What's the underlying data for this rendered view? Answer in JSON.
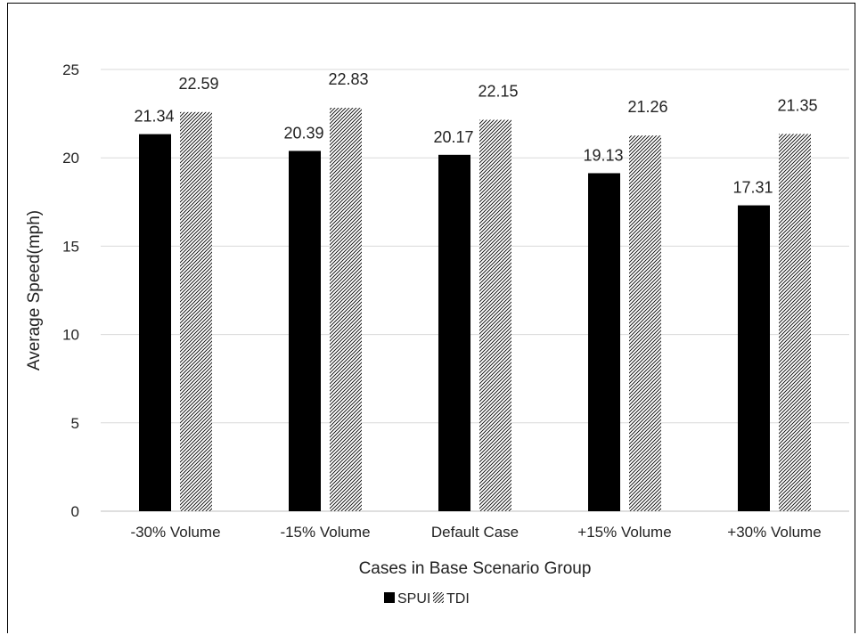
{
  "chart_data": {
    "type": "bar",
    "title": "",
    "xlabel": "Cases in Base Scenario Group",
    "ylabel": "Average Speed(mph)",
    "ylim": [
      0,
      25
    ],
    "yticks": [
      0,
      5,
      10,
      15,
      20,
      25
    ],
    "grid": true,
    "legend_position": "bottom",
    "categories": [
      "-30% Volume",
      "-15% Volume",
      "Default Case",
      "+15% Volume",
      "+30% Volume"
    ],
    "series": [
      {
        "name": "SPUI",
        "values": [
          21.34,
          20.39,
          20.17,
          19.13,
          17.31
        ],
        "data_labels": [
          "21.34",
          "20.39",
          "20.17",
          "19.13",
          "17.31"
        ],
        "fill": "solid",
        "color": "#000000"
      },
      {
        "name": "TDI",
        "values": [
          22.59,
          22.83,
          22.15,
          21.26,
          21.35
        ],
        "data_labels": [
          "22.59",
          "22.83",
          "22.15",
          "21.26",
          "21.35"
        ],
        "fill": "diagonal-hatch",
        "color": "#000000"
      }
    ]
  }
}
